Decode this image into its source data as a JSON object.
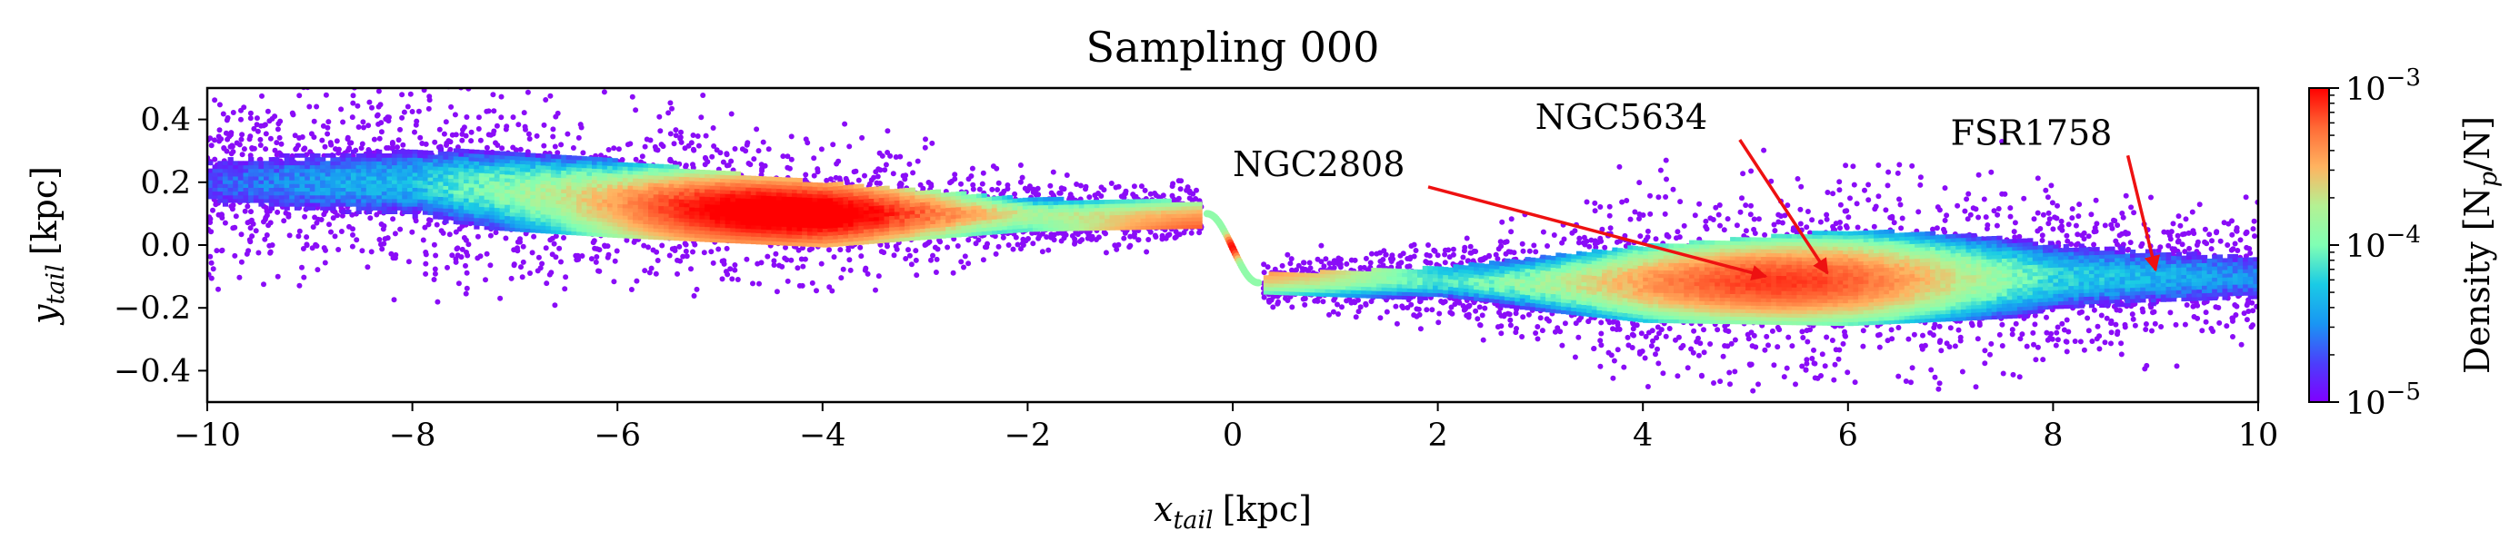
{
  "chart_data": {
    "type": "heatmap",
    "title": "Sampling 000",
    "xlabel": "x",
    "xlabel_sub": "tail",
    "xlabel_unit": "[kpc]",
    "ylabel": "y",
    "ylabel_sub": "tail",
    "ylabel_unit": "[kpc]",
    "xlim": [
      -10,
      10
    ],
    "ylim": [
      -0.5,
      0.5
    ],
    "x_ticks": [
      -10,
      -8,
      -6,
      -4,
      -2,
      0,
      2,
      4,
      6,
      8,
      10
    ],
    "x_tick_labels": [
      "−10",
      "−8",
      "−6",
      "−4",
      "−2",
      "0",
      "2",
      "4",
      "6",
      "8",
      "10"
    ],
    "y_ticks": [
      0.4,
      0.2,
      0.0,
      -0.2,
      -0.4
    ],
    "y_tick_labels": [
      "0.4",
      "0.2",
      "0.0",
      "−0.2",
      "−0.4"
    ],
    "colorbar": {
      "label_prefix": "Density",
      "label_math": "[N",
      "label_sub": "p",
      "label_suffix": "/N]",
      "scale": "log",
      "range": [
        1e-05,
        0.001
      ],
      "ticks": [
        {
          "value": 0.001,
          "base": "10",
          "exp": "−3"
        },
        {
          "value": 0.0001,
          "base": "10",
          "exp": "−4"
        },
        {
          "value": 1e-05,
          "base": "10",
          "exp": "−5"
        }
      ],
      "colormap": "rainbow"
    },
    "tail_segments": [
      {
        "x": [
          -10,
          -8,
          -6,
          -4,
          -2,
          -0.3
        ],
        "y_center": [
          0.2,
          0.2,
          0.15,
          0.1,
          0.1,
          0.1
        ],
        "half_width": [
          0.13,
          0.13,
          0.12,
          0.1,
          0.05,
          0.04
        ],
        "peak_density": [
          2e-05,
          5e-05,
          0.0002,
          0.00055,
          0.00012,
          5e-05
        ]
      },
      {
        "x": [
          0.3,
          2,
          4,
          6,
          8,
          10
        ],
        "y_center": [
          -0.12,
          -0.12,
          -0.12,
          -0.1,
          -0.1,
          -0.1
        ],
        "half_width": [
          0.03,
          0.05,
          0.12,
          0.15,
          0.12,
          0.1
        ],
        "peak_density": [
          4e-05,
          6e-05,
          0.0002,
          0.0002,
          6e-05,
          3e-05
        ]
      }
    ],
    "hotspots": [
      {
        "x": -4.5,
        "y": 0.1,
        "density": 0.001
      },
      {
        "x": 5.3,
        "y": -0.12,
        "density": 0.0006
      },
      {
        "x": 0.0,
        "y": 0.0,
        "density": 0.001
      }
    ],
    "annotations": [
      {
        "text": "NGC2808",
        "label_x": 0.0,
        "label_y": 0.22,
        "point_x": 5.2,
        "point_y": -0.1
      },
      {
        "text": "NGC5634",
        "label_x": 2.95,
        "label_y": 0.37,
        "point_x": 5.8,
        "point_y": -0.09
      },
      {
        "text": "FSR1758",
        "label_x": 7.0,
        "label_y": 0.32,
        "point_x": 9.0,
        "point_y": -0.08
      }
    ],
    "annotation_color": "#ee1111"
  }
}
